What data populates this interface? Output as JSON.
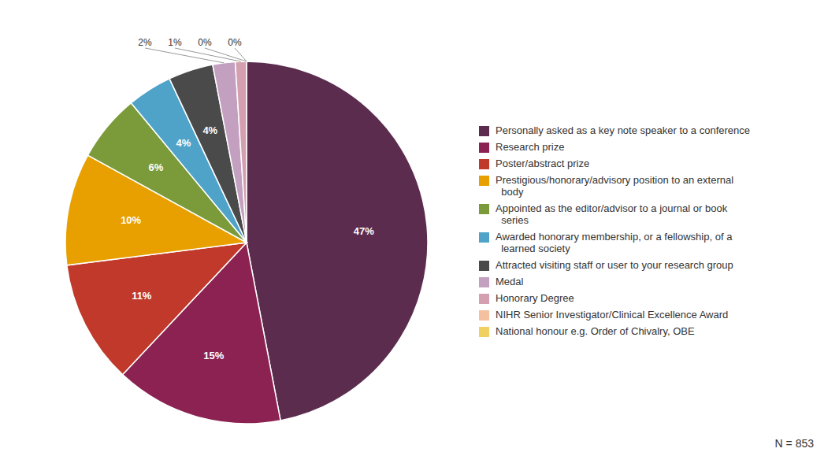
{
  "chart_data": {
    "type": "pie",
    "categories": [
      "Personally asked as a key note speaker to a conference",
      "Research prize",
      "Poster/abstract prize",
      "Prestigious/honorary/advisory position to an external\n  body",
      "Appointed as the editor/advisor to a journal or book\n  series",
      "Awarded honorary membership, or a fellowship, of a\n  learned society",
      "Attracted visiting staff or user to your research group",
      "Medal",
      "Honorary Degree",
      "NIHR Senior Investigator/Clinical Excellence Award",
      "National honour e.g. Order of Chivalry, OBE"
    ],
    "values": [
      47,
      15,
      11,
      10,
      6,
      4,
      4,
      2,
      1,
      0,
      0
    ],
    "value_labels": [
      "47%",
      "15%",
      "11%",
      "10%",
      "6%",
      "4%",
      "4%",
      "2%",
      "1%",
      "0%",
      "0%"
    ],
    "colors": [
      "#5B2C4E",
      "#8B2252",
      "#C0392B",
      "#E8A000",
      "#7B9B3A",
      "#4FA3C8",
      "#4A4A4A",
      "#C4A0C0",
      "#D4A0B0",
      "#F4C0A0",
      "#F0D060"
    ],
    "data_labels": true,
    "legend": "right",
    "annotations": [
      "N = 853"
    ]
  }
}
